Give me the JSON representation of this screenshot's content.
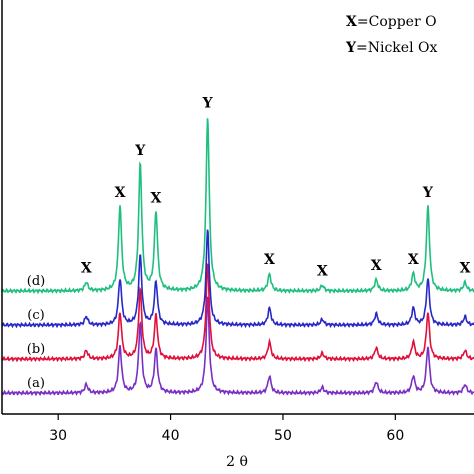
{
  "chart_data": {
    "type": "line",
    "xlabel": "2 θ",
    "ylabel": "",
    "xlim": [
      25,
      67
    ],
    "xticks": [
      "30",
      "40",
      "50",
      "60"
    ],
    "grid": false,
    "legend": {
      "placement": "top-right",
      "entries": [
        {
          "symbol": "X",
          "text": "=Copper O"
        },
        {
          "symbol": "Y",
          "text": "=Nickel Ox"
        }
      ]
    },
    "peak_labels": [
      {
        "text": "X",
        "x": 32.5
      },
      {
        "text": "X",
        "x": 35.5
      },
      {
        "text": "Y",
        "x": 37.3
      },
      {
        "text": "X",
        "x": 38.7
      },
      {
        "text": "Y",
        "x": 43.3
      },
      {
        "text": "X",
        "x": 48.8
      },
      {
        "text": "X",
        "x": 53.5
      },
      {
        "text": "X",
        "x": 58.3
      },
      {
        "text": "X",
        "x": 61.6
      },
      {
        "text": "Y",
        "x": 62.9
      },
      {
        "text": "X",
        "x": 66.2
      }
    ],
    "peaks": [
      {
        "x": 32.5,
        "height": 3
      },
      {
        "x": 35.5,
        "height": 30
      },
      {
        "x": 37.3,
        "height": 45
      },
      {
        "x": 38.7,
        "height": 28
      },
      {
        "x": 43.3,
        "height": 62
      },
      {
        "x": 48.8,
        "height": 6
      },
      {
        "x": 53.5,
        "height": 2
      },
      {
        "x": 58.3,
        "height": 4
      },
      {
        "x": 61.6,
        "height": 6
      },
      {
        "x": 62.9,
        "height": 30
      },
      {
        "x": 66.2,
        "height": 3
      }
    ],
    "series": [
      {
        "name": "(a)",
        "color": "#7a2fc4",
        "offset": 0,
        "peak_scale": 0.55
      },
      {
        "name": "(b)",
        "color": "#e0103a",
        "offset": 1,
        "peak_scale": 0.55
      },
      {
        "name": "(c)",
        "color": "#2828c8",
        "offset": 2,
        "peak_scale": 0.55
      },
      {
        "name": "(d)",
        "color": "#1fbf7f",
        "offset": 3,
        "peak_scale": 1.0
      }
    ]
  }
}
